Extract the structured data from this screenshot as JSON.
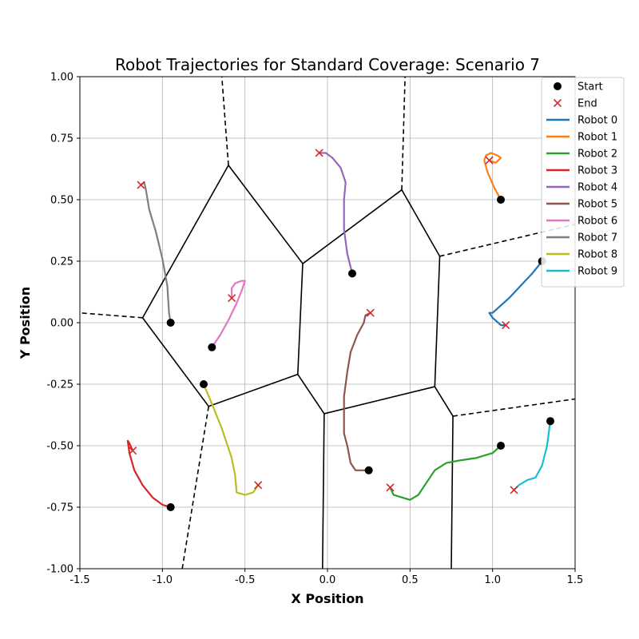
{
  "chart_data": {
    "type": "line",
    "title": "Robot Trajectories for Standard Coverage: Scenario 7",
    "xlabel": "X Position",
    "ylabel": "Y Position",
    "xlim": [
      -1.5,
      1.5
    ],
    "ylim": [
      -1.0,
      1.0
    ],
    "xticks": [
      "-1.5",
      "-1.0",
      "-0.5",
      "0.0",
      "0.5",
      "1.0",
      "1.5"
    ],
    "yticks": [
      "-1.00",
      "-0.75",
      "-0.50",
      "-0.25",
      "0.00",
      "0.25",
      "0.50",
      "0.75",
      "1.00"
    ],
    "grid": true,
    "legend_position": "upper-right, outside the axes",
    "legend": [
      {
        "label": "Start",
        "marker": "dot",
        "color": "#000000"
      },
      {
        "label": "End",
        "marker": "x",
        "color": "#d62728"
      }
    ],
    "series": [
      {
        "name": "Robot 0",
        "color": "#1f77b4",
        "start": [
          1.3,
          0.25
        ],
        "end": [
          1.08,
          -0.01
        ],
        "path": [
          [
            1.3,
            0.25
          ],
          [
            1.24,
            0.2
          ],
          [
            1.17,
            0.15
          ],
          [
            1.1,
            0.1
          ],
          [
            1.05,
            0.07
          ],
          [
            1.0,
            0.04
          ],
          [
            0.98,
            0.04
          ],
          [
            1.0,
            0.02
          ],
          [
            1.05,
            -0.01
          ],
          [
            1.08,
            -0.01
          ]
        ]
      },
      {
        "name": "Robot 1",
        "color": "#ff7f0e",
        "start": [
          1.05,
          0.5
        ],
        "end": [
          0.98,
          0.66
        ],
        "path": [
          [
            1.05,
            0.5
          ],
          [
            1.01,
            0.55
          ],
          [
            0.97,
            0.61
          ],
          [
            0.95,
            0.66
          ],
          [
            0.96,
            0.68
          ],
          [
            0.99,
            0.69
          ],
          [
            1.03,
            0.68
          ],
          [
            1.05,
            0.67
          ],
          [
            1.02,
            0.65
          ],
          [
            0.98,
            0.66
          ]
        ]
      },
      {
        "name": "Robot 2",
        "color": "#2ca02c",
        "start": [
          1.05,
          -0.5
        ],
        "end": [
          0.38,
          -0.67
        ],
        "path": [
          [
            1.05,
            -0.5
          ],
          [
            1.0,
            -0.53
          ],
          [
            0.9,
            -0.55
          ],
          [
            0.8,
            -0.56
          ],
          [
            0.72,
            -0.57
          ],
          [
            0.65,
            -0.6
          ],
          [
            0.6,
            -0.65
          ],
          [
            0.55,
            -0.7
          ],
          [
            0.5,
            -0.72
          ],
          [
            0.45,
            -0.71
          ],
          [
            0.4,
            -0.7
          ],
          [
            0.38,
            -0.67
          ]
        ]
      },
      {
        "name": "Robot 3",
        "color": "#d62728",
        "start": [
          -0.95,
          -0.75
        ],
        "end": [
          -1.18,
          -0.52
        ],
        "path": [
          [
            -0.95,
            -0.75
          ],
          [
            -1.0,
            -0.74
          ],
          [
            -1.06,
            -0.71
          ],
          [
            -1.12,
            -0.66
          ],
          [
            -1.17,
            -0.6
          ],
          [
            -1.2,
            -0.53
          ],
          [
            -1.21,
            -0.48
          ],
          [
            -1.2,
            -0.49
          ],
          [
            -1.18,
            -0.52
          ]
        ]
      },
      {
        "name": "Robot 4",
        "color": "#9467bd",
        "start": [
          0.15,
          0.2
        ],
        "end": [
          -0.05,
          0.69
        ],
        "path": [
          [
            0.15,
            0.2
          ],
          [
            0.12,
            0.28
          ],
          [
            0.1,
            0.38
          ],
          [
            0.1,
            0.5
          ],
          [
            0.11,
            0.57
          ],
          [
            0.08,
            0.63
          ],
          [
            0.03,
            0.67
          ],
          [
            -0.01,
            0.69
          ],
          [
            -0.05,
            0.69
          ]
        ]
      },
      {
        "name": "Robot 5",
        "color": "#8c564b",
        "start": [
          0.25,
          -0.6
        ],
        "end": [
          0.26,
          0.04
        ],
        "path": [
          [
            0.25,
            -0.6
          ],
          [
            0.17,
            -0.6
          ],
          [
            0.14,
            -0.57
          ],
          [
            0.12,
            -0.5
          ],
          [
            0.1,
            -0.45
          ],
          [
            0.1,
            -0.3
          ],
          [
            0.12,
            -0.2
          ],
          [
            0.14,
            -0.12
          ],
          [
            0.18,
            -0.05
          ],
          [
            0.22,
            0.0
          ],
          [
            0.23,
            0.03
          ],
          [
            0.26,
            0.04
          ]
        ]
      },
      {
        "name": "Robot 6",
        "color": "#e377c2",
        "start": [
          -0.7,
          -0.1
        ],
        "end": [
          -0.58,
          0.1
        ],
        "path": [
          [
            -0.7,
            -0.1
          ],
          [
            -0.65,
            -0.05
          ],
          [
            -0.6,
            0.01
          ],
          [
            -0.55,
            0.08
          ],
          [
            -0.52,
            0.13
          ],
          [
            -0.5,
            0.17
          ],
          [
            -0.52,
            0.17
          ],
          [
            -0.56,
            0.16
          ],
          [
            -0.58,
            0.14
          ],
          [
            -0.58,
            0.1
          ]
        ]
      },
      {
        "name": "Robot 7",
        "color": "#7f7f7f",
        "start": [
          -0.95,
          0.0
        ],
        "end": [
          -1.13,
          0.56
        ],
        "path": [
          [
            -0.95,
            0.0
          ],
          [
            -0.96,
            0.04
          ],
          [
            -0.97,
            0.15
          ],
          [
            -1.0,
            0.26
          ],
          [
            -1.04,
            0.37
          ],
          [
            -1.08,
            0.46
          ],
          [
            -1.1,
            0.54
          ],
          [
            -1.11,
            0.57
          ],
          [
            -1.13,
            0.56
          ]
        ]
      },
      {
        "name": "Robot 8",
        "color": "#bcbd22",
        "start": [
          -0.75,
          -0.25
        ],
        "end": [
          -0.42,
          -0.66
        ],
        "path": [
          [
            -0.75,
            -0.25
          ],
          [
            -0.7,
            -0.33
          ],
          [
            -0.64,
            -0.43
          ],
          [
            -0.58,
            -0.55
          ],
          [
            -0.56,
            -0.62
          ],
          [
            -0.55,
            -0.69
          ],
          [
            -0.5,
            -0.7
          ],
          [
            -0.45,
            -0.69
          ],
          [
            -0.42,
            -0.66
          ]
        ]
      },
      {
        "name": "Robot 9",
        "color": "#17becf",
        "start": [
          1.35,
          -0.4
        ],
        "end": [
          1.13,
          -0.68
        ],
        "path": [
          [
            1.35,
            -0.4
          ],
          [
            1.33,
            -0.5
          ],
          [
            1.3,
            -0.58
          ],
          [
            1.26,
            -0.63
          ],
          [
            1.21,
            -0.64
          ],
          [
            1.16,
            -0.66
          ],
          [
            1.13,
            -0.68
          ]
        ]
      }
    ],
    "voronoi_solid": [
      [
        [
          -0.6,
          0.64
        ],
        [
          -0.15,
          0.24
        ]
      ],
      [
        [
          -0.6,
          0.64
        ],
        [
          -1.12,
          0.02
        ]
      ],
      [
        [
          -1.12,
          0.02
        ],
        [
          -0.72,
          -0.34
        ]
      ],
      [
        [
          -0.72,
          -0.34
        ],
        [
          -0.18,
          -0.21
        ]
      ],
      [
        [
          -0.15,
          0.24
        ],
        [
          -0.18,
          -0.21
        ]
      ],
      [
        [
          -0.15,
          0.24
        ],
        [
          0.45,
          0.54
        ]
      ],
      [
        [
          0.45,
          0.54
        ],
        [
          0.68,
          0.27
        ]
      ],
      [
        [
          0.68,
          0.27
        ],
        [
          0.65,
          -0.26
        ]
      ],
      [
        [
          -0.18,
          -0.21
        ],
        [
          -0.02,
          -0.37
        ]
      ],
      [
        [
          -0.02,
          -0.37
        ],
        [
          0.65,
          -0.26
        ]
      ],
      [
        [
          0.65,
          -0.26
        ],
        [
          0.76,
          -0.38
        ]
      ],
      [
        [
          -0.02,
          -0.37
        ],
        [
          -0.03,
          -1.0
        ]
      ],
      [
        [
          0.76,
          -0.38
        ],
        [
          0.75,
          -1.0
        ]
      ]
    ],
    "voronoi_dashed": [
      [
        [
          -0.6,
          0.64
        ],
        [
          -0.64,
          1.0
        ]
      ],
      [
        [
          0.45,
          0.54
        ],
        [
          0.47,
          1.0
        ]
      ],
      [
        [
          -1.12,
          0.02
        ],
        [
          -1.5,
          0.04
        ]
      ],
      [
        [
          -0.72,
          -0.34
        ],
        [
          -0.88,
          -1.0
        ]
      ],
      [
        [
          0.68,
          0.27
        ],
        [
          1.5,
          0.4
        ]
      ],
      [
        [
          0.76,
          -0.38
        ],
        [
          1.5,
          -0.31
        ]
      ]
    ]
  }
}
